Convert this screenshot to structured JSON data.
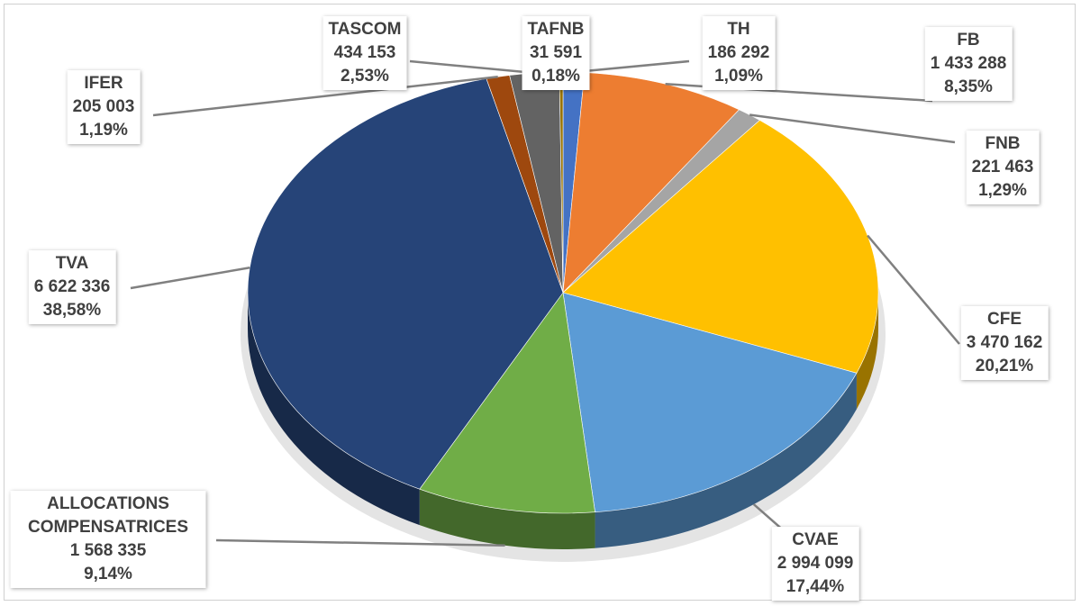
{
  "chart_data": {
    "type": "pie3d",
    "categories": [
      "TH",
      "FB",
      "FNB",
      "CFE",
      "CVAE",
      "ALLOCATIONS COMPENSATRICES",
      "TVA",
      "IFER",
      "TASCOM",
      "TAFNB"
    ],
    "values": [
      186292,
      1433288,
      221463,
      3470162,
      2994099,
      1568335,
      6622336,
      205003,
      434153,
      31591
    ],
    "value_labels": [
      "186 292",
      "1 433 288",
      "221 463",
      "3 470 162",
      "2 994 099",
      "1 568 335",
      "6 622 336",
      "205 003",
      "434 153",
      "31 591"
    ],
    "percentages": [
      1.09,
      8.35,
      1.29,
      20.21,
      17.44,
      9.14,
      38.58,
      1.19,
      2.53,
      0.18
    ],
    "percentage_labels": [
      "1,09%",
      "8,35%",
      "1,29%",
      "20,21%",
      "17,44%",
      "9,14%",
      "38,58%",
      "1,19%",
      "2,53%",
      "0,18%"
    ],
    "colors": [
      "#4472c4",
      "#ed7d31",
      "#a5a5a5",
      "#ffc000",
      "#5b9bd5",
      "#70ad47",
      "#264478",
      "#9e480e",
      "#636363",
      "#997300"
    ]
  }
}
